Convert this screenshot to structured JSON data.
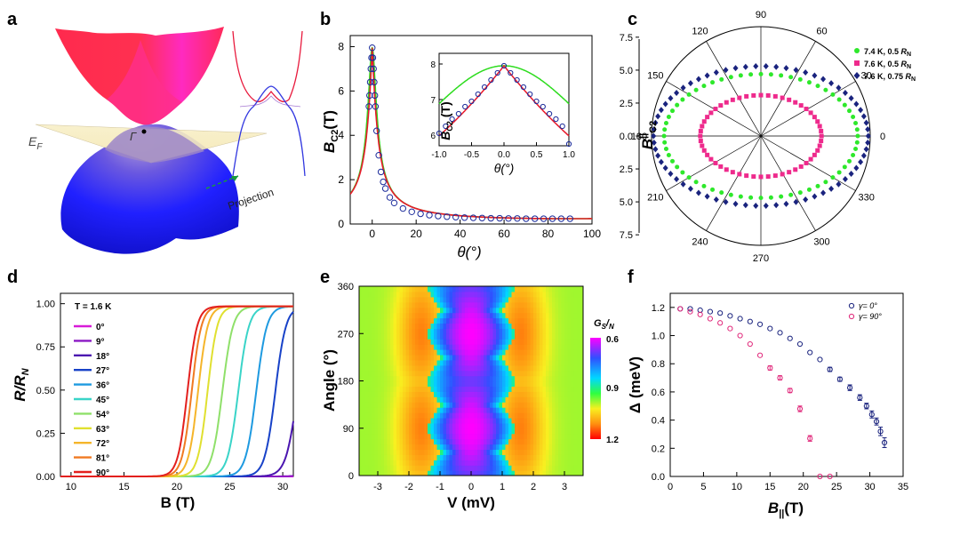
{
  "panel_letters": [
    "a",
    "b",
    "c",
    "d",
    "e",
    "f"
  ],
  "panel_a": {
    "ef_label": "E",
    "ef_sub": "F",
    "gamma_label": "Γ",
    "projection_label": "Projection"
  },
  "chart_data": [
    {
      "id": "b",
      "type": "line",
      "xlabel": "θ(°)",
      "ylabel": "B",
      "ylabel_sub": "C2",
      "ylabel_unit": "(T)",
      "xlim": [
        -10,
        100
      ],
      "ylim": [
        0,
        8.5
      ],
      "xticks": [
        0,
        20,
        40,
        60,
        80,
        100
      ],
      "yticks": [
        0,
        2,
        4,
        6,
        8
      ],
      "series": [
        {
          "style": "circles",
          "color": "#1a2a9a",
          "x": [
            -1.5,
            -1.2,
            -0.9,
            -0.6,
            -0.3,
            0,
            0.3,
            0.6,
            0.9,
            1.2,
            1.5,
            2,
            3,
            4,
            5,
            6,
            8,
            10,
            14,
            18,
            22,
            26,
            30,
            34,
            38,
            42,
            46,
            50,
            54,
            58,
            62,
            66,
            70,
            74,
            78,
            82,
            86,
            90
          ],
          "y": [
            5.3,
            5.8,
            6.4,
            7.0,
            7.5,
            7.95,
            7.5,
            7.0,
            6.4,
            5.8,
            5.3,
            4.2,
            3.1,
            2.35,
            1.9,
            1.6,
            1.2,
            0.95,
            0.7,
            0.55,
            0.46,
            0.4,
            0.36,
            0.33,
            0.31,
            0.29,
            0.28,
            0.27,
            0.26,
            0.26,
            0.25,
            0.25,
            0.24,
            0.24,
            0.24,
            0.24,
            0.24,
            0.24
          ]
        },
        {
          "style": "line",
          "color": "#e8192b",
          "model": "tinkham",
          "params": {
            "bperp": 0.24,
            "bpar": 7.95
          }
        },
        {
          "style": "line",
          "color": "#2ddc1e",
          "model": "gl",
          "params": {
            "bperp": 0.24,
            "bpar": 7.95
          }
        }
      ],
      "inset": {
        "xlabel": "θ(°)",
        "ylabel": "B",
        "ylabel_sub": "C2",
        "ylabel_unit": "(T)",
        "xlim": [
          -1,
          1
        ],
        "ylim": [
          5.7,
          8.3
        ],
        "xticks": [
          -1.0,
          -0.5,
          0.0,
          0.5,
          1.0
        ],
        "yticks": [
          6,
          7,
          8
        ],
        "points_x": [
          -1,
          -0.9,
          -0.8,
          -0.7,
          -0.6,
          -0.5,
          -0.4,
          -0.3,
          -0.2,
          -0.1,
          0,
          0.1,
          0.2,
          0.3,
          0.4,
          0.5,
          0.6,
          0.7,
          0.8,
          0.9,
          1
        ],
        "points_y": [
          6.05,
          6.25,
          6.45,
          6.6,
          6.8,
          6.95,
          7.15,
          7.35,
          7.55,
          7.75,
          7.95,
          7.75,
          7.55,
          7.35,
          7.15,
          6.95,
          6.8,
          6.6,
          6.45,
          6.25,
          5.75
        ]
      }
    },
    {
      "id": "c",
      "type": "scatter",
      "coord": "polar",
      "ylabel": "B",
      "ylabel_sup": "||",
      "ylabel_sub": "C2",
      "rmax": 8.3,
      "radial_ticks": [
        "7.5",
        "5.0",
        "2.5",
        "0.0",
        "2.5",
        "5.0",
        "7.5"
      ],
      "angle_labels": [
        "0",
        "30",
        "60",
        "90",
        "120",
        "150",
        "180",
        "210",
        "240",
        "270",
        "300",
        "330"
      ],
      "series": [
        {
          "name": "7.4 K, 0.5",
          "name_sub": "N",
          "color": "#2ee82b",
          "marker": "circle",
          "a": 7.35,
          "b": 4.7
        },
        {
          "name": "7.6 K, 0.5",
          "name_sub": "N",
          "color": "#ee2a8c",
          "marker": "square",
          "a": 4.6,
          "b": 3.1
        },
        {
          "name": "7.6 K, 0.75",
          "name_sub": "N",
          "color": "#1a237e",
          "marker": "diamond",
          "a": 8.15,
          "b": 5.3
        }
      ]
    },
    {
      "id": "d",
      "type": "line",
      "xlabel": "B (T)",
      "ylabel": "R/R",
      "ylabel_sub": "N",
      "xlim": [
        9,
        31
      ],
      "ylim": [
        0,
        1.06
      ],
      "xticks": [
        10,
        15,
        20,
        25,
        30
      ],
      "yticks": [
        "0.00",
        "0.25",
        "0.50",
        "0.75",
        "1.00"
      ],
      "annotation": "T = 1.6 K",
      "series": [
        {
          "name": "0°",
          "color": "#d81bd8",
          "mid": 36,
          "w": 1.2
        },
        {
          "name": "9°",
          "color": "#8b18c4",
          "mid": 34,
          "w": 1.2
        },
        {
          "name": "18°",
          "color": "#4b16b0",
          "mid": 31.4,
          "w": 1.2
        },
        {
          "name": "27°",
          "color": "#1842c8",
          "mid": 29.3,
          "w": 1.1
        },
        {
          "name": "36°",
          "color": "#1e9ae0",
          "mid": 27.5,
          "w": 1.1
        },
        {
          "name": "45°",
          "color": "#3ad4c8",
          "mid": 25.8,
          "w": 1.1
        },
        {
          "name": "54°",
          "color": "#8fe06a",
          "mid": 24.3,
          "w": 1.1
        },
        {
          "name": "63°",
          "color": "#e0e030",
          "mid": 22.9,
          "w": 1.0
        },
        {
          "name": "72°",
          "color": "#f5b52a",
          "mid": 22.0,
          "w": 1.0
        },
        {
          "name": "81°",
          "color": "#f07a22",
          "mid": 21.4,
          "w": 1.0
        },
        {
          "name": "90°",
          "color": "#e3201e",
          "mid": 21.0,
          "w": 1.0
        }
      ]
    },
    {
      "id": "e",
      "type": "heatmap",
      "xlabel": "V (mV)",
      "ylabel": "Angle (°)",
      "xlim": [
        -3.6,
        3.6
      ],
      "ylim": [
        0,
        360
      ],
      "xticks": [
        -3,
        -2,
        -1,
        0,
        1,
        2,
        3
      ],
      "yticks": [
        0,
        90,
        180,
        270,
        360
      ],
      "colorbar": {
        "title": "G",
        "title_sub1": "S",
        "title_sep": "/",
        "title_sub2": "N",
        "ticks": [
          "0.6",
          "0.9",
          "1.2"
        ]
      }
    },
    {
      "id": "f",
      "type": "scatter",
      "xlabel": "B",
      "xlabel_sub": "||",
      "xlabel_unit": "(T)",
      "ylabel": "Δ (meV)",
      "xlim": [
        0,
        35
      ],
      "ylim": [
        0,
        1.3
      ],
      "xticks": [
        0,
        5,
        10,
        15,
        20,
        25,
        30,
        35
      ],
      "yticks": [
        "0.0",
        "0.2",
        "0.4",
        "0.6",
        "0.8",
        "1.0",
        "1.2"
      ],
      "series": [
        {
          "name": "γ= 0°",
          "color": "#1a237e",
          "x": [
            1.5,
            3,
            4.5,
            6,
            7.5,
            9,
            10.5,
            12,
            13.5,
            15,
            16.5,
            18,
            19.5,
            21,
            22.5,
            24,
            25.5,
            27,
            28.5,
            29.5,
            30.3,
            31,
            31.6,
            32.2
          ],
          "y": [
            1.19,
            1.19,
            1.18,
            1.17,
            1.16,
            1.14,
            1.12,
            1.1,
            1.08,
            1.05,
            1.02,
            0.98,
            0.94,
            0.88,
            0.83,
            0.76,
            0.69,
            0.63,
            0.56,
            0.5,
            0.44,
            0.39,
            0.32,
            0.24
          ],
          "err": [
            0,
            0,
            0,
            0,
            0,
            0,
            0,
            0,
            0,
            0,
            0,
            0,
            0,
            0,
            0,
            0.015,
            0.015,
            0.02,
            0.02,
            0.02,
            0.025,
            0.025,
            0.03,
            0.035
          ]
        },
        {
          "name": "γ= 90°",
          "color": "#e0287a",
          "x": [
            1.5,
            3,
            4.5,
            6,
            7.5,
            9,
            10.5,
            12,
            13.5,
            15,
            16.5,
            18,
            19.5,
            21,
            22.5,
            24
          ],
          "y": [
            1.19,
            1.17,
            1.15,
            1.12,
            1.09,
            1.05,
            1.0,
            0.94,
            0.86,
            0.77,
            0.7,
            0.61,
            0.48,
            0.27,
            0.0,
            0.0
          ],
          "err": [
            0,
            0,
            0,
            0,
            0,
            0,
            0,
            0,
            0,
            0.015,
            0.015,
            0.015,
            0.02,
            0.02,
            0,
            0
          ]
        }
      ]
    }
  ]
}
